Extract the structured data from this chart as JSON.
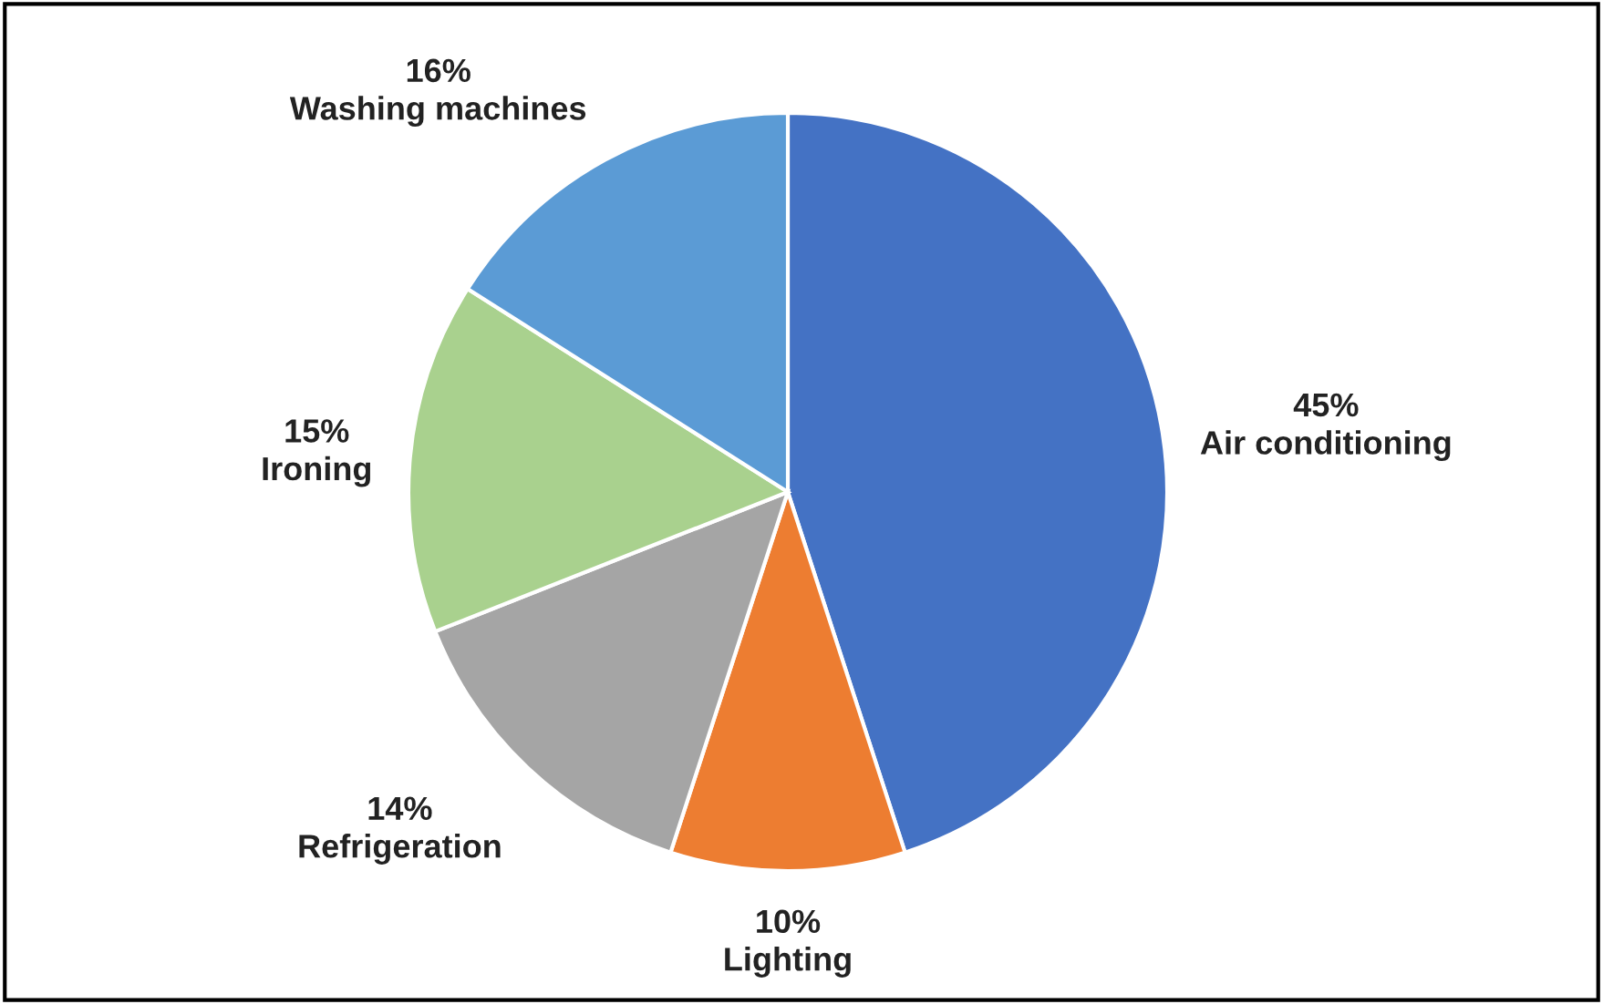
{
  "chart_data": {
    "type": "pie",
    "categories": [
      "Air conditioning",
      "Lighting",
      "Refrigeration",
      "Ironing",
      "Washing machines"
    ],
    "values": [
      45,
      10,
      14,
      15,
      16
    ],
    "colors": [
      "#4472c4",
      "#ed7d31",
      "#a5a5a5",
      "#a9d18e",
      "#5b9bd5"
    ],
    "value_labels": [
      "45%",
      "10%",
      "14%",
      "15%",
      "16%"
    ],
    "legend": false
  }
}
